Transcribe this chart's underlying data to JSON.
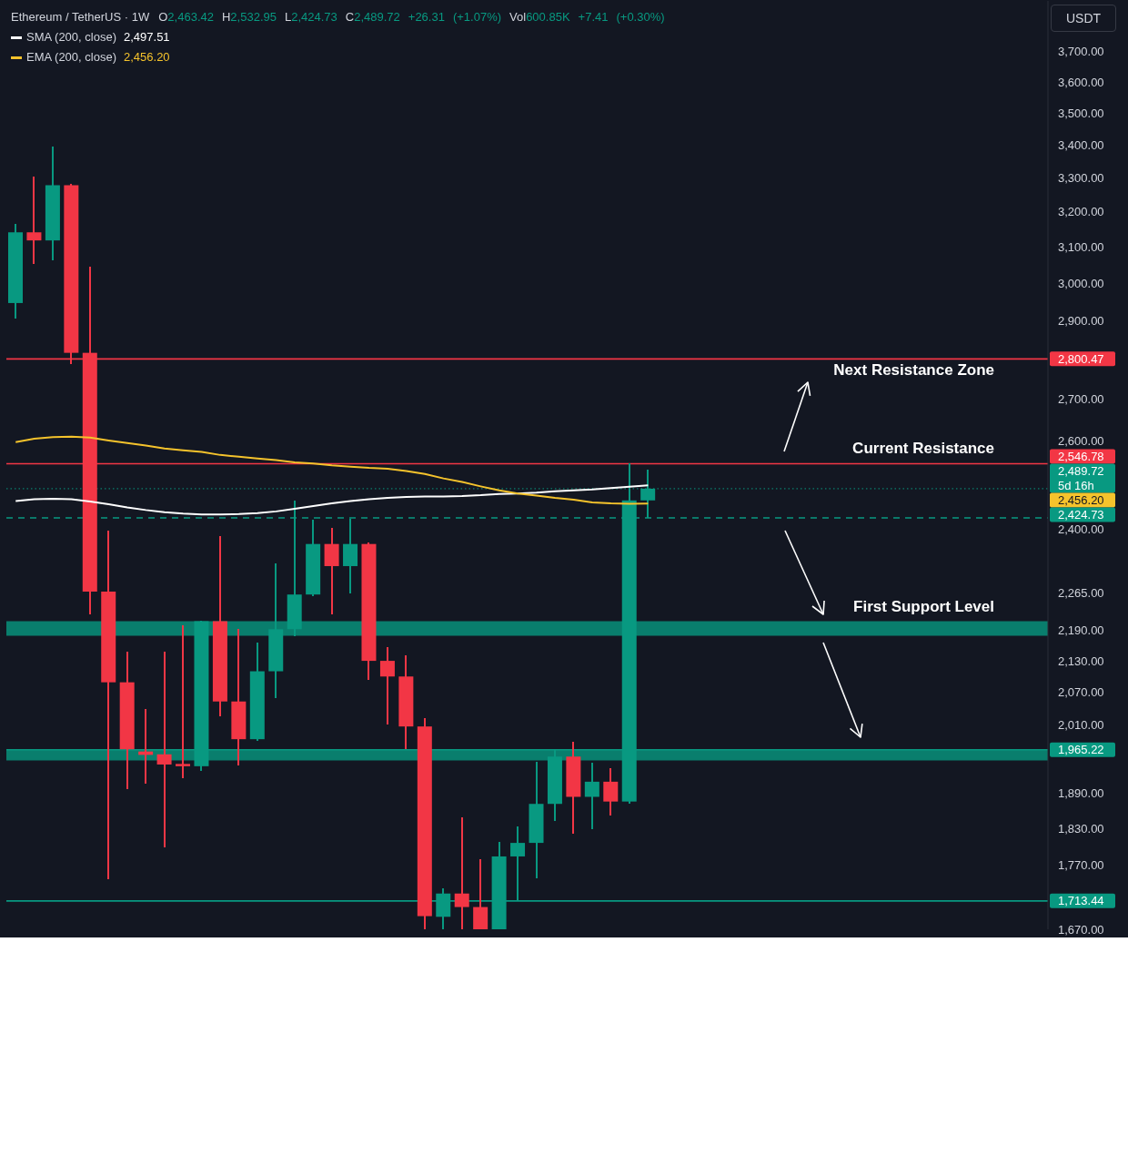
{
  "chart_data": {
    "type": "candlestick",
    "title": "Ethereum / TetherUS · 1W",
    "subtitle": "O2,463.42 H2,532.95 L2,424.73 C2,489.72 +26.31 (+1.07%) Vol600.85K +7.41 (+0.30%)",
    "ylabel": "USDT",
    "categories": [
      null,
      null,
      null,
      null,
      null,
      null,
      null,
      null,
      null,
      null,
      null,
      null,
      null,
      null,
      null,
      null,
      null,
      null,
      null,
      null,
      null,
      null,
      null,
      null,
      null,
      null,
      null,
      null,
      null,
      null,
      null,
      null,
      null,
      null,
      null,
      null,
      null,
      null,
      null,
      null,
      null,
      null,
      null,
      null,
      null,
      null,
      null,
      null,
      null,
      null,
      null,
      null,
      null,
      null,
      null,
      null
    ],
    "ohlc": [
      [
        2946,
        3165,
        2906,
        3141
      ],
      [
        3141,
        3304,
        3053,
        3118
      ],
      [
        3118,
        3396,
        3062,
        3278
      ],
      [
        3278,
        3283,
        2788,
        2816
      ],
      [
        2816,
        3045,
        2221,
        2268
      ],
      [
        2268,
        2396,
        1747,
        2089
      ],
      [
        2089,
        2147,
        1896,
        1966
      ],
      [
        1962,
        2039,
        1906,
        1956
      ],
      [
        1957,
        2148,
        1798,
        1939
      ],
      [
        1940,
        2199,
        1915,
        1936
      ],
      [
        1936,
        2208,
        1928,
        2208
      ],
      [
        2208,
        2385,
        2025,
        2053
      ],
      [
        2053,
        2192,
        1938,
        1984
      ],
      [
        1984,
        2166,
        1981,
        2110
      ],
      [
        2110,
        2327,
        2060,
        2192
      ],
      [
        2192,
        2463,
        2178,
        2262
      ],
      [
        2262,
        2421,
        2258,
        2368
      ],
      [
        2368,
        2403,
        2221,
        2321
      ],
      [
        2321,
        2422,
        2265,
        2368
      ],
      [
        2368,
        2371,
        2093,
        2130
      ],
      [
        2130,
        2157,
        2010,
        2100
      ],
      [
        2100,
        2141,
        1966,
        2007
      ],
      [
        2007,
        2022,
        1670,
        1690
      ],
      [
        1689,
        1733,
        1670,
        1725
      ],
      [
        1725,
        1848,
        1670,
        1704
      ],
      [
        1704,
        1779,
        1670,
        1670
      ],
      [
        1670,
        1807,
        1670,
        1784
      ],
      [
        1784,
        1833,
        1713.44,
        1806
      ],
      [
        1806,
        1944,
        1749,
        1871
      ],
      [
        1871,
        1965,
        1842,
        1953
      ],
      [
        1953,
        1980,
        1821,
        1883
      ],
      [
        1883,
        1942,
        1828,
        1909
      ],
      [
        1909,
        1933,
        1852,
        1875
      ],
      [
        1875,
        2546.78,
        1872,
        2463.42
      ],
      [
        2463.42,
        2532.95,
        2424.73,
        2489.72
      ],
      null,
      null,
      null,
      null,
      null,
      null,
      null,
      null,
      null,
      null,
      null,
      null,
      null,
      null,
      null,
      null,
      null,
      null,
      null,
      null,
      null
    ],
    "colors": [
      "#089981",
      "#f23645",
      "#089981",
      "#f23645",
      "#f23645",
      "#f23645",
      "#f23645",
      "#f23645",
      "#f23645",
      "#f23645",
      "#089981",
      "#f23645",
      "#f23645",
      "#089981",
      "#089981",
      "#089981",
      "#089981",
      "#f23645",
      "#089981",
      "#f23645",
      "#f23645",
      "#f23645",
      "#f23645",
      "#089981",
      "#f23645",
      "#f23645",
      "#089981",
      "#089981",
      "#089981",
      "#089981",
      "#f23645",
      "#089981",
      "#f23645",
      "#089981",
      "#089981",
      null,
      null,
      null,
      null,
      null,
      null,
      null,
      null,
      null,
      null,
      null,
      null,
      null,
      null,
      null,
      null,
      null,
      null,
      null,
      null,
      null
    ],
    "series": [
      {
        "name": "SMA (200, close)",
        "type": "line",
        "color": "#ffffff",
        "values": [
          2462,
          2466,
          2467,
          2466,
          2461,
          2455,
          2448,
          2442,
          2437,
          2434,
          2432,
          2432,
          2433,
          2435,
          2439,
          2445,
          2451,
          2457,
          2462,
          2466,
          2469,
          2471,
          2472,
          2472,
          2473,
          2475,
          2478,
          2479,
          2481,
          2484,
          2486,
          2488,
          2491,
          2494,
          2497.51,
          null,
          null,
          null,
          null,
          null,
          null,
          null,
          null,
          null,
          null,
          null,
          null,
          null,
          null,
          null,
          null,
          null,
          null,
          null,
          null,
          null
        ]
      },
      {
        "name": "EMA (200, close)",
        "type": "line",
        "color": "#f5c32c",
        "values": [
          2597,
          2605,
          2609,
          2610,
          2608,
          2601,
          2595,
          2589,
          2582,
          2578,
          2574,
          2567,
          2563,
          2559,
          2555,
          2550,
          2547,
          2543,
          2540,
          2537,
          2535,
          2530,
          2523,
          2513,
          2505,
          2495,
          2486,
          2479,
          2474,
          2469,
          2465,
          2459,
          2457,
          2456,
          2456.2,
          null,
          null,
          null,
          null,
          null,
          null,
          null,
          null,
          null,
          null,
          null,
          null,
          null,
          null,
          null,
          null,
          null,
          null,
          null,
          null,
          null
        ]
      }
    ],
    "ylim": [
      1670,
      3874
    ],
    "log": true,
    "yticks": [
      {
        "value": 1670,
        "label": "1,670.00"
      },
      {
        "value": 1770,
        "label": "1,770.00"
      },
      {
        "value": 1830,
        "label": "1,830.00"
      },
      {
        "value": 1890,
        "label": "1,890.00"
      },
      {
        "value": 2010,
        "label": "2,010.00"
      },
      {
        "value": 2070,
        "label": "2,070.00"
      },
      {
        "value": 2130,
        "label": "2,130.00"
      },
      {
        "value": 2190,
        "label": "2,190.00"
      },
      {
        "value": 2265,
        "label": "2,265.00"
      },
      {
        "value": 2400,
        "label": "2,400.00"
      },
      {
        "value": 2600,
        "label": "2,600.00"
      },
      {
        "value": 2700,
        "label": "2,700.00"
      },
      {
        "value": 2900,
        "label": "2,900.00"
      },
      {
        "value": 3000,
        "label": "3,000.00"
      },
      {
        "value": 3100,
        "label": "3,100.00"
      },
      {
        "value": 3200,
        "label": "3,200.00"
      },
      {
        "value": 3300,
        "label": "3,300.00"
      },
      {
        "value": 3400,
        "label": "3,400.00"
      },
      {
        "value": 3500,
        "label": "3,500.00"
      },
      {
        "value": 3600,
        "label": "3,600.00"
      },
      {
        "value": 3700,
        "label": "3,700.00"
      }
    ],
    "tick_labels": "y",
    "ref_lines": [
      {
        "axis": "y",
        "value": 2800.47,
        "label": "2,800.47",
        "color": "#f23645"
      },
      {
        "axis": "y",
        "value": 2546.78,
        "label": "2,546.78",
        "color": "#f23645"
      },
      {
        "axis": "y",
        "value": 2489.72,
        "label": "2,489.72\n5d 16h",
        "color": "#089981",
        "line_style": "dotted"
      },
      {
        "axis": "y",
        "value": 2424.73,
        "label": "2,424.73",
        "color": "#089981",
        "line_style": "dashed"
      },
      {
        "axis": "y",
        "value": 1965.22,
        "label": "1,965.22",
        "color": "#089981"
      },
      {
        "axis": "y",
        "value": 1713.44,
        "label": "1,713.44",
        "color": "#089981"
      }
    ],
    "bands": [
      {
        "axis": "y",
        "from": 2179,
        "to": 2208,
        "color": "#089981"
      },
      {
        "axis": "y",
        "from": 1946,
        "to": 1966,
        "color": "#089981"
      }
    ],
    "annotations": [
      "2,497.51",
      "2,456.20",
      "Next Resistance Zone",
      "Current Resistance",
      "First Support Level",
      "2,456.20"
    ],
    "legend": "top left"
  }
}
